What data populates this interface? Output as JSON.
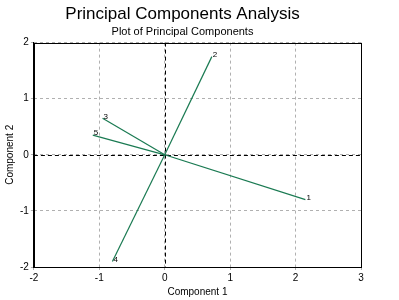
{
  "chart_data": {
    "type": "scatter",
    "title": "Principal Components Analysis",
    "subtitle": "Plot of Principal Components",
    "x_label": "Component 1",
    "y_label": "Component 2",
    "categories": [
      "1",
      "2",
      "3",
      "4",
      "5"
    ],
    "x": [
      2.15,
      0.72,
      -0.95,
      -0.8,
      -1.1
    ],
    "values": [
      -0.8,
      1.75,
      0.65,
      -1.9,
      0.35
    ],
    "color": "#1a7a52",
    "xlim": [
      -2,
      3
    ],
    "xticks": [
      -2,
      -1,
      0,
      1,
      2,
      3
    ],
    "ylim": [
      -2,
      2
    ],
    "yticks": [
      -2,
      -1,
      0,
      1,
      2
    ],
    "grid": true
  }
}
